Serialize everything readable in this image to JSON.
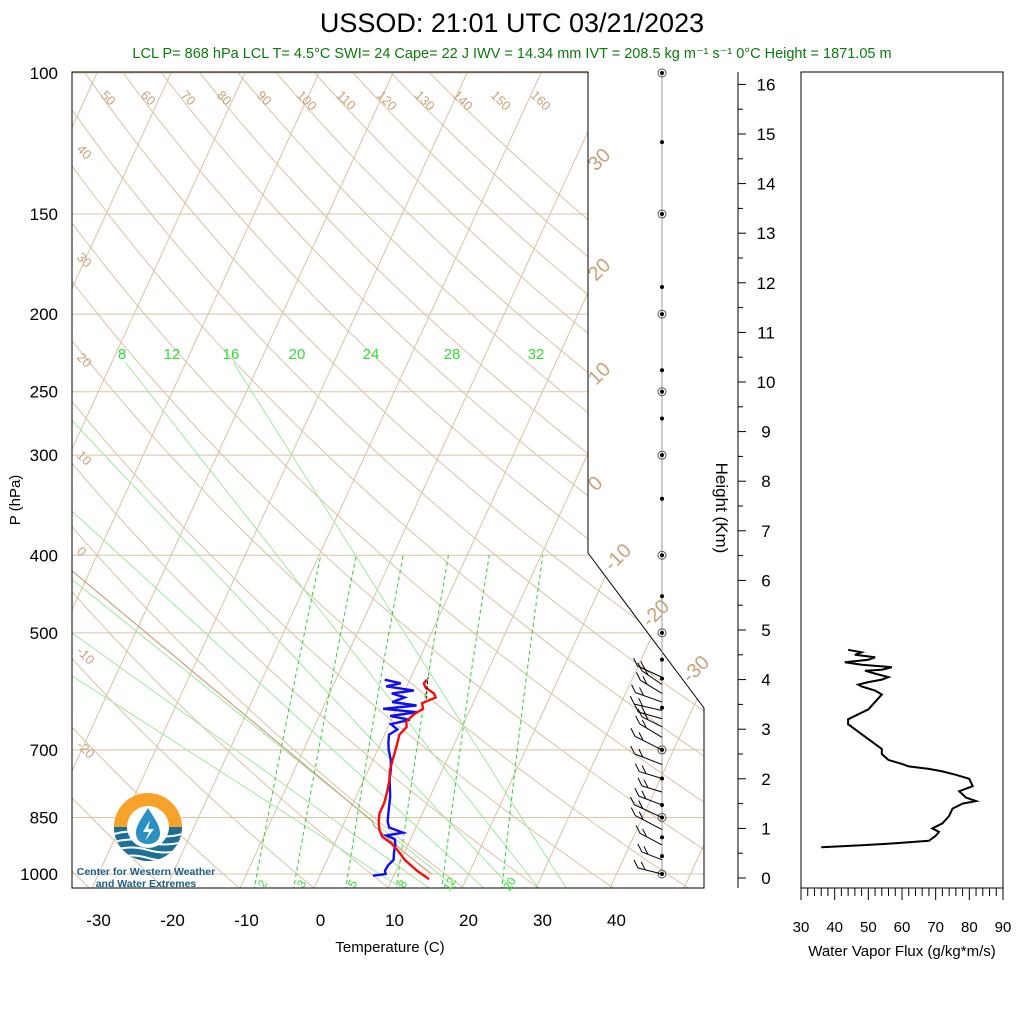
{
  "header": {
    "title": "USSOD: 21:01 UTC 03/21/2023",
    "subtitle": "LCL P= 868 hPa  LCL T= 4.5°C  SWI= 24  Cape= 22 J  IWV = 14.34 mm  IVT = 208.5 kg m⁻¹ s⁻¹  0°C Height = 1871.05 m"
  },
  "logo": {
    "line1": "Center for Western Weather",
    "line2": "and Water Extremes",
    "colors": {
      "sun": "#f7a22b",
      "water": "#1d6f96",
      "drop": "#2a8fc1"
    }
  },
  "chart_data": [
    {
      "type": "skew-t",
      "xlabel": "Temperature (C)",
      "ylabel": "P (hPa)",
      "xlim": [
        -34,
        50
      ],
      "ylim": [
        1050,
        100
      ],
      "x_ticks": [
        -30,
        -20,
        -10,
        0,
        10,
        20,
        30,
        40
      ],
      "p_ticks": [
        100,
        150,
        200,
        250,
        300,
        400,
        500,
        700,
        850,
        1000
      ],
      "dry_adiabat_labels": [
        "50",
        "60",
        "70",
        "80",
        "90",
        "100",
        "110",
        "120",
        "130",
        "140",
        "150",
        "160"
      ],
      "left_isotherm_labels": [
        "40",
        "30",
        "20",
        "10",
        "0",
        "-10",
        "-20"
      ],
      "right_isotherm_labels": [
        "30",
        "20",
        "10",
        "0",
        "-10",
        "-20",
        "-30"
      ],
      "moist_adiabat_labels": [
        "8",
        "12",
        "16",
        "20",
        "24",
        "28",
        "32"
      ],
      "mixing_ratio_labels": [
        "2",
        "3",
        "5",
        "8",
        "12",
        "20"
      ],
      "temperature_profile": [
        [
          1015,
          15.0
        ],
        [
          990,
          12.8
        ],
        [
          960,
          10.5
        ],
        [
          935,
          9.0
        ],
        [
          915,
          7.6
        ],
        [
          898,
          6.0
        ],
        [
          880,
          5.2
        ],
        [
          860,
          4.6
        ],
        [
          840,
          4.2
        ],
        [
          815,
          4.2
        ],
        [
          790,
          3.9
        ],
        [
          765,
          3.5
        ],
        [
          740,
          2.9
        ],
        [
          715,
          2.6
        ],
        [
          690,
          2.3
        ],
        [
          670,
          2.0
        ],
        [
          655,
          2.5
        ],
        [
          645,
          2.1
        ],
        [
          632,
          2.7
        ],
        [
          622,
          3.6
        ],
        [
          612,
          3.1
        ],
        [
          602,
          4.6
        ],
        [
          595,
          4.1
        ],
        [
          585,
          2.6
        ],
        [
          578,
          2.1
        ],
        [
          572,
          2.3
        ]
      ],
      "dewpoint_profile": [
        [
          1005,
          7.2
        ],
        [
          1000,
          8.8
        ],
        [
          990,
          8.5
        ],
        [
          975,
          8.6
        ],
        [
          960,
          9.0
        ],
        [
          940,
          8.6
        ],
        [
          920,
          8.3
        ],
        [
          905,
          7.9
        ],
        [
          895,
          6.5
        ],
        [
          888,
          8.6
        ],
        [
          875,
          6.4
        ],
        [
          860,
          5.8
        ],
        [
          840,
          5.4
        ],
        [
          820,
          5.0
        ],
        [
          800,
          4.6
        ],
        [
          780,
          4.0
        ],
        [
          760,
          3.4
        ],
        [
          740,
          3.0
        ],
        [
          720,
          2.4
        ],
        [
          700,
          1.5
        ],
        [
          685,
          1.0
        ],
        [
          670,
          0.6
        ],
        [
          660,
          1.4
        ],
        [
          650,
          0.2
        ],
        [
          642,
          2.5
        ],
        [
          635,
          -0.4
        ],
        [
          628,
          3.0
        ],
        [
          622,
          -1.8
        ],
        [
          616,
          2.5
        ],
        [
          610,
          -1.0
        ],
        [
          602,
          0.4
        ],
        [
          595,
          -1.6
        ],
        [
          590,
          1.2
        ],
        [
          583,
          -2.8
        ],
        [
          578,
          -1.0
        ],
        [
          572,
          -3.4
        ]
      ],
      "lcl": {
        "p": 868,
        "t": 4.5
      },
      "wind_barb_levels": [
        1000,
        960,
        920,
        880,
        850,
        820,
        790,
        760,
        730,
        700,
        675,
        655,
        640,
        625,
        610,
        595,
        580,
        568
      ],
      "wind_barb_dots": [
        100,
        122,
        150,
        185,
        200,
        235,
        250,
        270,
        300,
        340,
        400,
        450,
        500,
        540,
        570,
        620,
        700,
        760,
        820,
        850,
        900,
        950,
        1000
      ]
    },
    {
      "type": "line",
      "xlabel": "Water Vapor Flux (g/kg*m/s)",
      "ylabel": "Height (Km)",
      "xlim": [
        30,
        90
      ],
      "x_ticks": [
        30,
        40,
        50,
        60,
        70,
        80,
        90
      ],
      "ylim": [
        -0.2,
        16.4
      ],
      "y_ticks": [
        0,
        1,
        2,
        3,
        4,
        5,
        6,
        7,
        8,
        9,
        10,
        11,
        12,
        13,
        14,
        15,
        16
      ],
      "x": [
        36,
        48,
        58,
        68,
        70,
        71,
        69,
        72,
        74,
        75,
        78,
        82,
        79,
        77,
        81,
        80,
        76,
        72,
        68,
        62,
        60,
        56,
        54,
        54,
        52,
        50,
        48,
        46,
        44,
        44,
        47,
        50,
        52,
        54,
        52,
        50,
        48,
        47,
        50,
        54,
        56,
        52,
        49,
        54,
        57,
        48,
        43,
        50,
        52,
        46,
        48,
        44
      ],
      "y": [
        0.62,
        0.66,
        0.7,
        0.75,
        0.85,
        0.93,
        1.0,
        1.1,
        1.25,
        1.4,
        1.5,
        1.55,
        1.62,
        1.75,
        1.85,
        2.0,
        2.08,
        2.15,
        2.2,
        2.25,
        2.3,
        2.38,
        2.5,
        2.6,
        2.7,
        2.8,
        2.9,
        3.0,
        3.1,
        3.2,
        3.3,
        3.4,
        3.55,
        3.7,
        3.78,
        3.82,
        3.86,
        3.9,
        3.95,
        4.0,
        4.05,
        4.12,
        4.18,
        4.2,
        4.25,
        4.3,
        4.35,
        4.4,
        4.45,
        4.5,
        4.55,
        4.6
      ]
    }
  ]
}
